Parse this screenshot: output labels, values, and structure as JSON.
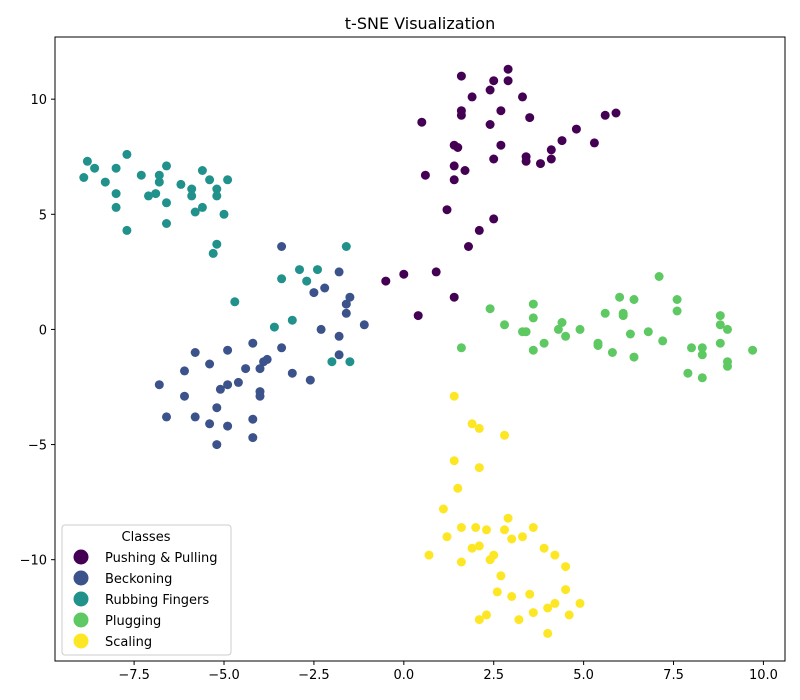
{
  "chart_data": {
    "type": "scatter",
    "title": "t-SNE Visualization",
    "xlabel": "",
    "ylabel": "",
    "xlim": [
      -9.7,
      10.6
    ],
    "ylim": [
      -14.4,
      12.7
    ],
    "xticks": [
      -7.5,
      -5.0,
      -2.5,
      0.0,
      2.5,
      5.0,
      7.5,
      10.0
    ],
    "xtick_labels": [
      "−7.5",
      "−5.0",
      "−2.5",
      "0.0",
      "2.5",
      "5.0",
      "7.5",
      "10.0"
    ],
    "yticks": [
      -10,
      -5,
      0,
      5,
      10
    ],
    "ytick_labels": [
      "−10",
      "−5",
      "0",
      "5",
      "10"
    ],
    "grid": false,
    "legend": {
      "title": "Classes",
      "position": "lower-left"
    },
    "series": [
      {
        "name": "Pushing & Pulling",
        "color": "#440154",
        "points": [
          [
            0.5,
            9.0
          ],
          [
            1.6,
            11.0
          ],
          [
            1.9,
            10.1
          ],
          [
            2.4,
            10.4
          ],
          [
            2.5,
            10.8
          ],
          [
            2.9,
            11.3
          ],
          [
            2.9,
            10.8
          ],
          [
            3.3,
            10.1
          ],
          [
            1.6,
            9.5
          ],
          [
            1.6,
            9.3
          ],
          [
            2.7,
            9.5
          ],
          [
            2.4,
            8.9
          ],
          [
            3.5,
            9.2
          ],
          [
            5.6,
            9.3
          ],
          [
            5.9,
            9.4
          ],
          [
            1.4,
            8.0
          ],
          [
            1.5,
            7.9
          ],
          [
            4.8,
            8.7
          ],
          [
            4.4,
            8.2
          ],
          [
            4.1,
            7.8
          ],
          [
            5.3,
            8.1
          ],
          [
            2.7,
            8.0
          ],
          [
            2.5,
            7.4
          ],
          [
            3.4,
            7.5
          ],
          [
            3.4,
            7.3
          ],
          [
            3.8,
            7.2
          ],
          [
            4.1,
            7.4
          ],
          [
            1.4,
            7.1
          ],
          [
            1.7,
            6.9
          ],
          [
            0.6,
            6.7
          ],
          [
            1.4,
            6.5
          ],
          [
            1.2,
            5.2
          ],
          [
            2.5,
            4.8
          ],
          [
            2.1,
            4.3
          ],
          [
            1.8,
            3.6
          ],
          [
            0.0,
            2.4
          ],
          [
            0.9,
            2.5
          ],
          [
            -0.5,
            2.1
          ],
          [
            1.4,
            1.4
          ],
          [
            0.4,
            0.6
          ]
        ]
      },
      {
        "name": "Beckoning",
        "color": "#3b528b",
        "points": [
          [
            -3.4,
            3.6
          ],
          [
            -1.8,
            2.5
          ],
          [
            -2.2,
            1.8
          ],
          [
            -2.5,
            1.6
          ],
          [
            -1.5,
            1.4
          ],
          [
            -1.6,
            1.1
          ],
          [
            -1.6,
            0.7
          ],
          [
            -1.1,
            0.2
          ],
          [
            -2.3,
            0.0
          ],
          [
            -1.8,
            -0.3
          ],
          [
            -4.2,
            -0.6
          ],
          [
            -3.4,
            -0.8
          ],
          [
            -5.8,
            -1.0
          ],
          [
            -4.9,
            -0.9
          ],
          [
            -1.8,
            -1.1
          ],
          [
            -3.8,
            -1.3
          ],
          [
            -3.9,
            -1.4
          ],
          [
            -5.4,
            -1.5
          ],
          [
            -4.4,
            -1.7
          ],
          [
            -4.0,
            -1.7
          ],
          [
            -6.1,
            -1.8
          ],
          [
            -3.1,
            -1.9
          ],
          [
            -6.8,
            -2.4
          ],
          [
            -4.6,
            -2.3
          ],
          [
            -4.9,
            -2.4
          ],
          [
            -2.6,
            -2.2
          ],
          [
            -5.1,
            -2.6
          ],
          [
            -4.0,
            -2.7
          ],
          [
            -4.0,
            -2.9
          ],
          [
            -6.1,
            -2.9
          ],
          [
            -5.2,
            -3.4
          ],
          [
            -6.6,
            -3.8
          ],
          [
            -5.8,
            -3.8
          ],
          [
            -4.2,
            -3.9
          ],
          [
            -5.4,
            -4.1
          ],
          [
            -4.9,
            -4.2
          ],
          [
            -4.2,
            -4.7
          ],
          [
            -5.2,
            -5.0
          ]
        ]
      },
      {
        "name": "Rubbing Fingers",
        "color": "#21918c",
        "points": [
          [
            -8.8,
            7.3
          ],
          [
            -8.6,
            7.0
          ],
          [
            -7.7,
            7.6
          ],
          [
            -8.0,
            7.0
          ],
          [
            -6.8,
            6.7
          ],
          [
            -7.3,
            6.7
          ],
          [
            -6.6,
            7.1
          ],
          [
            -5.6,
            6.9
          ],
          [
            -8.9,
            6.6
          ],
          [
            -8.3,
            6.4
          ],
          [
            -6.8,
            6.4
          ],
          [
            -6.2,
            6.3
          ],
          [
            -5.4,
            6.5
          ],
          [
            -4.9,
            6.5
          ],
          [
            -5.9,
            6.1
          ],
          [
            -5.2,
            6.1
          ],
          [
            -8.0,
            5.9
          ],
          [
            -6.9,
            5.9
          ],
          [
            -7.1,
            5.8
          ],
          [
            -5.9,
            5.8
          ],
          [
            -5.2,
            5.8
          ],
          [
            -6.6,
            5.5
          ],
          [
            -5.6,
            5.3
          ],
          [
            -8.0,
            5.3
          ],
          [
            -5.8,
            5.1
          ],
          [
            -5.0,
            5.0
          ],
          [
            -6.6,
            4.6
          ],
          [
            -7.7,
            4.3
          ],
          [
            -5.2,
            3.7
          ],
          [
            -5.3,
            3.3
          ],
          [
            -1.6,
            3.6
          ],
          [
            -3.4,
            2.2
          ],
          [
            -2.9,
            2.6
          ],
          [
            -2.4,
            2.6
          ],
          [
            -2.7,
            2.1
          ],
          [
            -4.7,
            1.2
          ],
          [
            -3.1,
            0.4
          ],
          [
            -3.6,
            0.1
          ],
          [
            -2.0,
            -1.4
          ],
          [
            -1.5,
            -1.4
          ]
        ]
      },
      {
        "name": "Plugging",
        "color": "#5ec962",
        "points": [
          [
            7.1,
            2.3
          ],
          [
            6.0,
            1.4
          ],
          [
            6.4,
            1.3
          ],
          [
            7.6,
            1.3
          ],
          [
            3.6,
            1.1
          ],
          [
            2.4,
            0.9
          ],
          [
            7.6,
            0.8
          ],
          [
            5.6,
            0.7
          ],
          [
            6.1,
            0.6
          ],
          [
            6.1,
            0.7
          ],
          [
            8.8,
            0.6
          ],
          [
            3.6,
            0.5
          ],
          [
            4.4,
            0.3
          ],
          [
            8.8,
            0.2
          ],
          [
            2.8,
            0.2
          ],
          [
            9.0,
            0.0
          ],
          [
            4.3,
            0.0
          ],
          [
            4.9,
            0.0
          ],
          [
            3.3,
            -0.1
          ],
          [
            3.4,
            -0.1
          ],
          [
            6.8,
            -0.1
          ],
          [
            4.5,
            -0.3
          ],
          [
            6.3,
            -0.2
          ],
          [
            7.2,
            -0.5
          ],
          [
            3.9,
            -0.6
          ],
          [
            5.4,
            -0.6
          ],
          [
            5.4,
            -0.7
          ],
          [
            8.8,
            -0.6
          ],
          [
            1.6,
            -0.8
          ],
          [
            3.6,
            -0.9
          ],
          [
            8.0,
            -0.8
          ],
          [
            8.3,
            -0.8
          ],
          [
            5.8,
            -1.0
          ],
          [
            8.3,
            -1.1
          ],
          [
            6.4,
            -1.2
          ],
          [
            9.7,
            -0.9
          ],
          [
            9.0,
            -1.4
          ],
          [
            9.0,
            -1.6
          ],
          [
            7.9,
            -1.9
          ],
          [
            8.3,
            -2.1
          ]
        ]
      },
      {
        "name": "Scaling",
        "color": "#fde725",
        "points": [
          [
            1.4,
            -2.9
          ],
          [
            1.9,
            -4.1
          ],
          [
            2.1,
            -4.3
          ],
          [
            2.8,
            -4.6
          ],
          [
            1.4,
            -5.7
          ],
          [
            2.1,
            -6.0
          ],
          [
            1.5,
            -6.9
          ],
          [
            1.1,
            -7.8
          ],
          [
            2.9,
            -8.2
          ],
          [
            1.2,
            -9.0
          ],
          [
            1.6,
            -8.6
          ],
          [
            2.0,
            -8.6
          ],
          [
            2.3,
            -8.7
          ],
          [
            2.8,
            -8.7
          ],
          [
            3.6,
            -8.6
          ],
          [
            3.3,
            -9.0
          ],
          [
            3.0,
            -9.1
          ],
          [
            2.1,
            -9.4
          ],
          [
            1.9,
            -9.5
          ],
          [
            3.9,
            -9.5
          ],
          [
            4.2,
            -9.8
          ],
          [
            2.5,
            -9.8
          ],
          [
            2.4,
            -10.0
          ],
          [
            0.7,
            -9.8
          ],
          [
            1.6,
            -10.1
          ],
          [
            4.5,
            -10.3
          ],
          [
            2.7,
            -10.7
          ],
          [
            2.6,
            -11.4
          ],
          [
            3.0,
            -11.6
          ],
          [
            3.5,
            -11.5
          ],
          [
            4.5,
            -11.3
          ],
          [
            4.2,
            -11.9
          ],
          [
            4.9,
            -11.9
          ],
          [
            4.0,
            -12.1
          ],
          [
            3.6,
            -12.3
          ],
          [
            4.6,
            -12.4
          ],
          [
            2.3,
            -12.4
          ],
          [
            2.1,
            -12.6
          ],
          [
            3.2,
            -12.6
          ],
          [
            4.0,
            -13.2
          ]
        ]
      }
    ]
  }
}
